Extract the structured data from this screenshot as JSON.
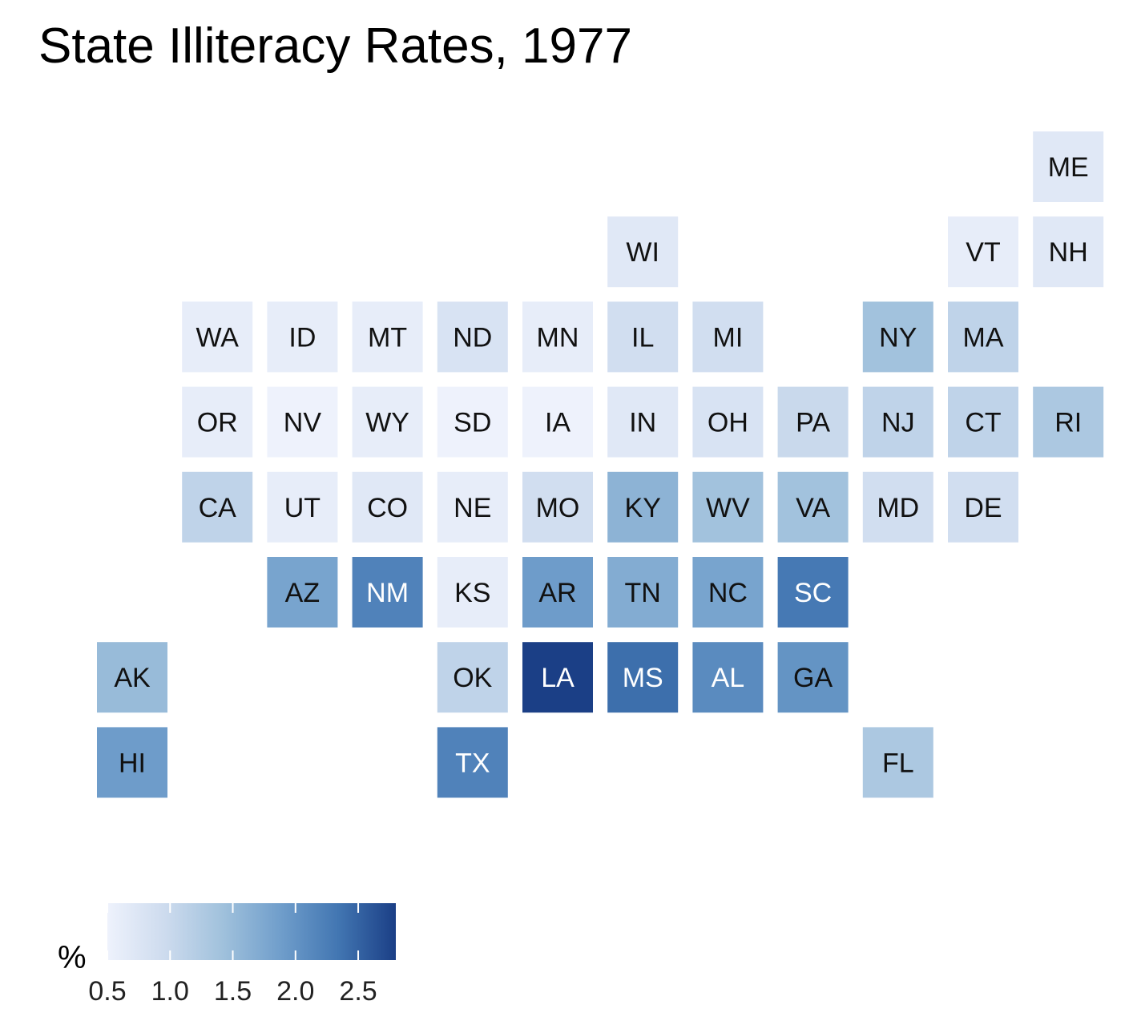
{
  "chart_data": {
    "type": "heatmap",
    "title": "State Illiteracy Rates, 1977",
    "subtitle": "",
    "xlabel": "",
    "ylabel": "",
    "legend": {
      "title": "%",
      "placement": "bottom-left",
      "ticks": [
        "0.5",
        "1.0",
        "1.5",
        "2.0",
        "2.5"
      ],
      "range": [
        0.5,
        2.8
      ],
      "color_low": "#eef2fc",
      "color_high": "#1b3f86"
    },
    "tiles": [
      {
        "state": "ME",
        "col": 11,
        "row": 0,
        "value": 0.7
      },
      {
        "state": "WI",
        "col": 6,
        "row": 1,
        "value": 0.7
      },
      {
        "state": "VT",
        "col": 10,
        "row": 1,
        "value": 0.6
      },
      {
        "state": "NH",
        "col": 11,
        "row": 1,
        "value": 0.7
      },
      {
        "state": "WA",
        "col": 1,
        "row": 2,
        "value": 0.6
      },
      {
        "state": "ID",
        "col": 2,
        "row": 2,
        "value": 0.6
      },
      {
        "state": "MT",
        "col": 3,
        "row": 2,
        "value": 0.6
      },
      {
        "state": "ND",
        "col": 4,
        "row": 2,
        "value": 0.8
      },
      {
        "state": "MN",
        "col": 5,
        "row": 2,
        "value": 0.6
      },
      {
        "state": "IL",
        "col": 6,
        "row": 2,
        "value": 0.9
      },
      {
        "state": "MI",
        "col": 7,
        "row": 2,
        "value": 0.9
      },
      {
        "state": "NY",
        "col": 9,
        "row": 2,
        "value": 1.4
      },
      {
        "state": "MA",
        "col": 10,
        "row": 2,
        "value": 1.1
      },
      {
        "state": "OR",
        "col": 1,
        "row": 3,
        "value": 0.6
      },
      {
        "state": "NV",
        "col": 2,
        "row": 3,
        "value": 0.5
      },
      {
        "state": "WY",
        "col": 3,
        "row": 3,
        "value": 0.6
      },
      {
        "state": "SD",
        "col": 4,
        "row": 3,
        "value": 0.5
      },
      {
        "state": "IA",
        "col": 5,
        "row": 3,
        "value": 0.5
      },
      {
        "state": "IN",
        "col": 6,
        "row": 3,
        "value": 0.7
      },
      {
        "state": "OH",
        "col": 7,
        "row": 3,
        "value": 0.8
      },
      {
        "state": "PA",
        "col": 8,
        "row": 3,
        "value": 1.0
      },
      {
        "state": "NJ",
        "col": 9,
        "row": 3,
        "value": 1.1
      },
      {
        "state": "CT",
        "col": 10,
        "row": 3,
        "value": 1.1
      },
      {
        "state": "RI",
        "col": 11,
        "row": 3,
        "value": 1.3
      },
      {
        "state": "CA",
        "col": 1,
        "row": 4,
        "value": 1.1
      },
      {
        "state": "UT",
        "col": 2,
        "row": 4,
        "value": 0.6
      },
      {
        "state": "CO",
        "col": 3,
        "row": 4,
        "value": 0.7
      },
      {
        "state": "NE",
        "col": 4,
        "row": 4,
        "value": 0.6
      },
      {
        "state": "MO",
        "col": 5,
        "row": 4,
        "value": 0.9
      },
      {
        "state": "KY",
        "col": 6,
        "row": 4,
        "value": 1.6
      },
      {
        "state": "WV",
        "col": 7,
        "row": 4,
        "value": 1.4
      },
      {
        "state": "VA",
        "col": 8,
        "row": 4,
        "value": 1.4
      },
      {
        "state": "MD",
        "col": 9,
        "row": 4,
        "value": 0.9
      },
      {
        "state": "DE",
        "col": 10,
        "row": 4,
        "value": 0.9
      },
      {
        "state": "AZ",
        "col": 2,
        "row": 5,
        "value": 1.8
      },
      {
        "state": "NM",
        "col": 3,
        "row": 5,
        "value": 2.2
      },
      {
        "state": "KS",
        "col": 4,
        "row": 5,
        "value": 0.6
      },
      {
        "state": "AR",
        "col": 5,
        "row": 5,
        "value": 1.9
      },
      {
        "state": "TN",
        "col": 6,
        "row": 5,
        "value": 1.7
      },
      {
        "state": "NC",
        "col": 7,
        "row": 5,
        "value": 1.8
      },
      {
        "state": "SC",
        "col": 8,
        "row": 5,
        "value": 2.3
      },
      {
        "state": "AK",
        "col": 0,
        "row": 6,
        "value": 1.5
      },
      {
        "state": "OK",
        "col": 4,
        "row": 6,
        "value": 1.1
      },
      {
        "state": "LA",
        "col": 5,
        "row": 6,
        "value": 2.8
      },
      {
        "state": "MS",
        "col": 6,
        "row": 6,
        "value": 2.4
      },
      {
        "state": "AL",
        "col": 7,
        "row": 6,
        "value": 2.1
      },
      {
        "state": "GA",
        "col": 8,
        "row": 6,
        "value": 2.0
      },
      {
        "state": "HI",
        "col": 0,
        "row": 7,
        "value": 1.9
      },
      {
        "state": "TX",
        "col": 4,
        "row": 7,
        "value": 2.2
      },
      {
        "state": "FL",
        "col": 9,
        "row": 7,
        "value": 1.3
      }
    ]
  }
}
